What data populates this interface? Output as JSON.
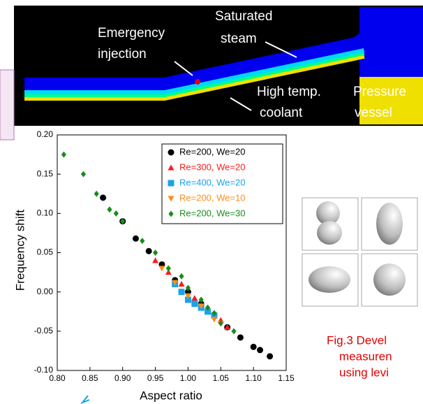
{
  "simulation": {
    "labels": [
      "Saturated",
      "steam",
      "Emergency",
      "injection",
      "High temp.",
      "coolant",
      "Pressure",
      "vessel"
    ]
  },
  "chart_data": {
    "type": "scatter",
    "xlabel": "Aspect ratio",
    "ylabel": "Frequency shift",
    "xlim": [
      0.8,
      1.15
    ],
    "xticks": [
      {
        "value": 0.8,
        "label": "0.80"
      },
      0.85,
      {
        "value": 0.9,
        "label": "0.90"
      },
      0.95,
      {
        "value": 1.0,
        "label": "1.00"
      },
      1.05,
      {
        "value": 1.1,
        "label": "1.10"
      },
      1.15
    ],
    "ylim": [
      -0.1,
      0.2
    ],
    "yticks": [
      {
        "value": -0.1,
        "label": "-0.10"
      },
      -0.05,
      {
        "value": 0,
        "label": "0.00"
      },
      0.05,
      {
        "value": 0.1,
        "label": "0.10"
      },
      0.15,
      {
        "value": 0.2,
        "label": "0.20"
      }
    ],
    "legend": "upper right",
    "series": [
      {
        "name": "Re=200, We=20",
        "color": "#000000",
        "marker": "circle",
        "x": [
          0.87,
          0.9,
          0.92,
          0.94,
          0.96,
          0.98,
          1.0,
          1.02,
          1.04,
          1.06,
          1.08,
          1.1,
          1.11,
          1.125
        ],
        "values": [
          0.12,
          0.09,
          0.068,
          0.052,
          0.035,
          0.015,
          0.0,
          -0.015,
          -0.03,
          -0.045,
          -0.058,
          -0.07,
          -0.074,
          -0.082
        ]
      },
      {
        "name": "Re=300, We=20",
        "color": "#ff1a1a",
        "marker": "triangle-up",
        "x": [
          0.95,
          0.97,
          0.99,
          1.01,
          1.03,
          1.05,
          1.06
        ],
        "values": [
          0.04,
          0.025,
          0.01,
          -0.008,
          -0.022,
          -0.036,
          -0.045
        ]
      },
      {
        "name": "Re=400, We=20",
        "color": "#1aa3e8",
        "marker": "square",
        "x": [
          0.98,
          0.99,
          1.0,
          1.01,
          1.02,
          1.03,
          1.04
        ],
        "values": [
          0.01,
          0.0,
          -0.01,
          -0.015,
          -0.02,
          -0.025,
          -0.03
        ]
      },
      {
        "name": "Re=200, We=10",
        "color": "#ff8c1a",
        "marker": "triangle-down",
        "x": [
          0.96,
          0.98,
          1.0,
          1.02,
          1.04,
          1.05
        ],
        "values": [
          0.03,
          0.012,
          -0.005,
          -0.018,
          -0.035,
          -0.04
        ]
      },
      {
        "name": "Re=200, We=30",
        "color": "#1a8c1a",
        "marker": "diamond",
        "x": [
          0.81,
          0.84,
          0.86,
          0.88,
          0.89,
          0.9,
          0.93,
          0.95,
          0.97,
          0.99,
          1.0,
          1.02,
          1.03,
          1.04,
          1.05,
          1.07
        ],
        "values": [
          0.175,
          0.15,
          0.125,
          0.105,
          0.1,
          0.09,
          0.065,
          0.05,
          0.03,
          0.02,
          0.005,
          -0.01,
          -0.02,
          -0.027,
          -0.04,
          -0.05
        ]
      }
    ]
  },
  "caption": {
    "lines": [
      "Fig.3 Devel",
      "measuren",
      "using levi"
    ]
  }
}
